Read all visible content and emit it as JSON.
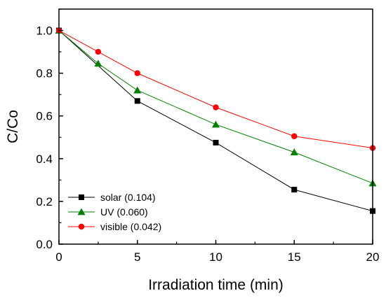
{
  "chart_data": {
    "type": "line",
    "title": "",
    "xlabel": "Irradiation time (min)",
    "ylabel": "C/Co",
    "xlim": [
      0,
      20
    ],
    "ylim": [
      0.0,
      1.1
    ],
    "x_ticks": [
      "0",
      "5",
      "10",
      "15",
      "20"
    ],
    "y_ticks": [
      "0.0",
      "0.2",
      "0.4",
      "0.6",
      "0.8",
      "1.0"
    ],
    "grid": false,
    "legend_position": "bottom-left",
    "series": [
      {
        "name": "solar (0.104)",
        "color": "#000000",
        "marker": "square",
        "x": [
          0,
          5,
          10,
          15,
          20
        ],
        "y": [
          1.0,
          0.67,
          0.475,
          0.255,
          0.155
        ]
      },
      {
        "name": "UV (0.060)",
        "color": "#008000",
        "marker": "triangle",
        "x": [
          0,
          2.5,
          5,
          10,
          15,
          20
        ],
        "y": [
          1.0,
          0.845,
          0.72,
          0.56,
          0.43,
          0.285
        ]
      },
      {
        "name": "visible (0.042)",
        "color": "#ff0000",
        "marker": "circle",
        "x": [
          0,
          2.5,
          5,
          10,
          15,
          20
        ],
        "y": [
          1.0,
          0.9,
          0.8,
          0.64,
          0.505,
          0.45
        ]
      }
    ]
  }
}
